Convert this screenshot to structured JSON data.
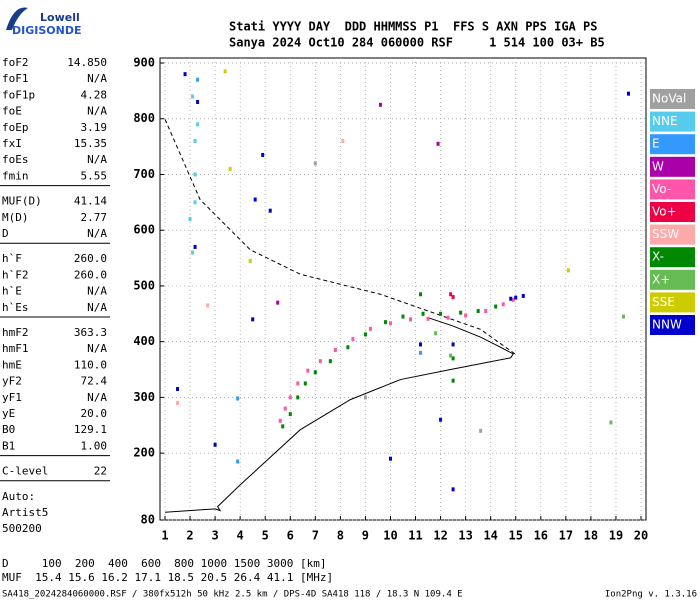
{
  "logo": {
    "line1": "Lowell",
    "line2": "DIGISONDE"
  },
  "header": {
    "row1": "Stati YYYY DAY  DDD HHMMSS P1  FFS S AXN PPS IGA PS",
    "row2": "Sanya 2024 Oct10 284 060000 RSF     1 514 100 03+ B5"
  },
  "parameters": [
    [
      {
        "name": "foF2",
        "value": "14.850"
      },
      {
        "name": "foF1",
        "value": "N/A"
      },
      {
        "name": "foF1p",
        "value": "4.28"
      },
      {
        "name": "foE",
        "value": "N/A"
      },
      {
        "name": "foEp",
        "value": "3.19"
      },
      {
        "name": "fxI",
        "value": "15.35"
      },
      {
        "name": "foEs",
        "value": "N/A"
      },
      {
        "name": "fmin",
        "value": "5.55"
      }
    ],
    [
      {
        "name": "MUF(D)",
        "value": "41.14"
      },
      {
        "name": "M(D)",
        "value": "2.77"
      },
      {
        "name": "D",
        "value": "N/A"
      }
    ],
    [
      {
        "name": "h`F",
        "value": "260.0"
      },
      {
        "name": "h`F2",
        "value": "260.0"
      },
      {
        "name": "h`E",
        "value": "N/A"
      },
      {
        "name": "h`Es",
        "value": "N/A"
      }
    ],
    [
      {
        "name": "hmF2",
        "value": "363.3"
      },
      {
        "name": "hmF1",
        "value": "N/A"
      },
      {
        "name": "hmE",
        "value": "110.0"
      },
      {
        "name": "yF2",
        "value": "72.4"
      },
      {
        "name": "yF1",
        "value": "N/A"
      },
      {
        "name": "yE",
        "value": "20.0"
      },
      {
        "name": "B0",
        "value": "129.1"
      },
      {
        "name": "B1",
        "value": "1.00"
      }
    ],
    [
      {
        "name": "C-level",
        "value": "22"
      }
    ]
  ],
  "autoscaling": [
    "Auto:",
    "Artist5",
    "500200"
  ],
  "chart_data": {
    "type": "scatter",
    "xlim": [
      1,
      20
    ],
    "ylim": [
      80,
      900
    ],
    "xticks": [
      1,
      2,
      3,
      4,
      5,
      6,
      7,
      8,
      9,
      10,
      11,
      12,
      13,
      14,
      15,
      16,
      17,
      18,
      19,
      20
    ],
    "yticks": [
      80,
      200,
      300,
      400,
      500,
      600,
      700,
      800,
      900
    ],
    "grid": true,
    "legend": "right",
    "series": [
      {
        "name": "NoVal",
        "color": "#a0a0a0",
        "x": [
          7.0,
          9.0,
          13.6
        ],
        "values": [
          720,
          300,
          240
        ]
      },
      {
        "name": "NNE",
        "color": "#55ccee",
        "x": [
          2.1,
          2.2,
          2.2,
          2.2,
          2.1,
          2.0,
          2.3
        ],
        "values": [
          840,
          760,
          700,
          650,
          560,
          620,
          790
        ]
      },
      {
        "name": "E",
        "color": "#3399ff",
        "x": [
          2.3,
          3.9,
          3.9,
          11.2
        ],
        "values": [
          870,
          298,
          185,
          380
        ]
      },
      {
        "name": "W",
        "color": "#aa00aa",
        "x": [
          9.6,
          11.9,
          5.5
        ],
        "values": [
          825,
          755,
          470
        ]
      },
      {
        "name": "Vo-",
        "color": "#ff55aa",
        "x": [
          5.6,
          5.8,
          6.0,
          6.3,
          6.7,
          7.2,
          7.8,
          8.5,
          9.2,
          10.0,
          10.8,
          11.5,
          12.3,
          13.0,
          13.8,
          14.5,
          14.9
        ],
        "values": [
          258,
          280,
          300,
          325,
          348,
          365,
          385,
          405,
          423,
          433,
          440,
          441,
          443,
          447,
          455,
          467,
          475
        ]
      },
      {
        "name": "Vo+",
        "color": "#ee0044",
        "x": [
          12.4,
          12.5
        ],
        "values": [
          485,
          480
        ]
      },
      {
        "name": "SSW",
        "color": "#ffaaaa",
        "x": [
          8.1,
          2.7,
          1.5
        ],
        "values": [
          760,
          465,
          290
        ]
      },
      {
        "name": "X-",
        "color": "#008800",
        "x": [
          5.7,
          6.0,
          6.3,
          6.6,
          7.0,
          7.6,
          8.3,
          9.0,
          9.8,
          10.5,
          11.3,
          12.0,
          12.8,
          13.5,
          14.2,
          12.5,
          12.5,
          11.2
        ],
        "values": [
          248,
          270,
          300,
          325,
          345,
          365,
          390,
          413,
          435,
          445,
          450,
          450,
          452,
          455,
          463,
          370,
          330,
          485
        ]
      },
      {
        "name": "X+",
        "color": "#66bb55",
        "x": [
          12.4,
          11.8,
          19.3,
          18.8
        ],
        "values": [
          375,
          415,
          445,
          255
        ]
      },
      {
        "name": "SSE",
        "color": "#cccc00",
        "x": [
          3.4,
          4.4,
          3.6,
          17.1
        ],
        "values": [
          885,
          545,
          710,
          528
        ]
      },
      {
        "name": "NNW",
        "color": "#0000cc",
        "x": [
          14.8,
          15.0,
          15.3,
          1.8,
          2.3,
          2.2,
          4.5,
          4.6,
          5.2,
          4.9,
          10.0,
          11.2,
          12.5,
          12.0,
          12.5,
          19.5,
          3.0,
          1.5
        ],
        "values": [
          477,
          479,
          482,
          880,
          830,
          570,
          440,
          655,
          635,
          735,
          190,
          395,
          395,
          260,
          135,
          845,
          215,
          315
        ]
      }
    ],
    "curves": [
      {
        "color": "#000000",
        "dashed": false,
        "x": [
          1.0,
          3.0,
          3.2,
          3.1,
          4.0,
          6.4,
          8.4,
          10.4,
          12.4,
          14.8,
          14.9,
          14.3,
          13.6,
          12.5,
          11.5
        ],
        "values": [
          94,
          100,
          97,
          104,
          143,
          242,
          296,
          332,
          350,
          371,
          378,
          392,
          408,
          428,
          443
        ]
      },
      {
        "color": "#000000",
        "dashed": true,
        "x": [
          1.0,
          2.4,
          4.4,
          6.4,
          9.6,
          13.6,
          15.0
        ],
        "values": [
          799,
          655,
          565,
          521,
          485,
          422,
          377
        ]
      }
    ]
  },
  "footer": {
    "d_row": "D     100  200  400  600  800 1000 1500 3000 [km]",
    "muf_row": "MUF  15.4 15.6 16.2 17.1 18.5 20.5 26.4 41.1 [MHz]",
    "file_info": "SA418_2024284060000.RSF / 380fx512h 50 kHz 2.5 km / DPS-4D SA418 118 / 18.3 N 109.4 E",
    "version": "Ion2Png v. 1.3.16"
  }
}
